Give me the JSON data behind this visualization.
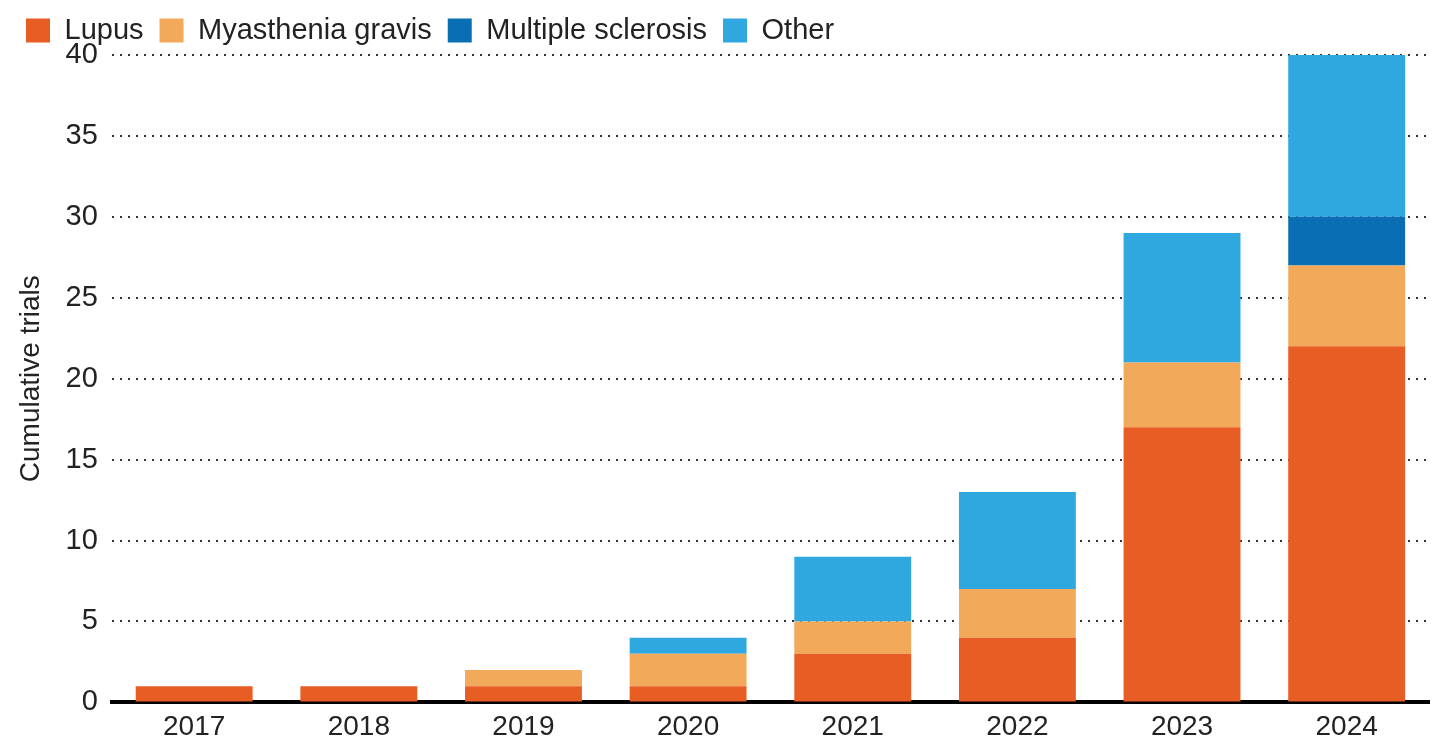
{
  "chart_data": {
    "type": "bar",
    "stacked": true,
    "ylabel": "Cumulative trials",
    "categories": [
      "2017",
      "2018",
      "2019",
      "2020",
      "2021",
      "2022",
      "2023",
      "2024"
    ],
    "series": [
      {
        "name": "Lupus",
        "color": "#e85d24",
        "values": [
          1,
          1,
          1,
          1,
          3,
          4,
          17,
          22
        ]
      },
      {
        "name": "Myasthenia gravis",
        "color": "#f3a95a",
        "values": [
          0,
          0,
          1,
          2,
          2,
          3,
          4,
          5
        ]
      },
      {
        "name": "Multiple sclerosis",
        "color": "#0a6eb4",
        "values": [
          0,
          0,
          0,
          0,
          0,
          0,
          0,
          3
        ]
      },
      {
        "name": "Other",
        "color": "#2fa8e0",
        "values": [
          0,
          0,
          0,
          1,
          4,
          6,
          8,
          10
        ]
      }
    ],
    "ylim": [
      0,
      40
    ],
    "yticks": [
      0,
      5,
      10,
      15,
      20,
      25,
      30,
      35,
      40
    ],
    "grid": "y",
    "legend": "top left"
  }
}
